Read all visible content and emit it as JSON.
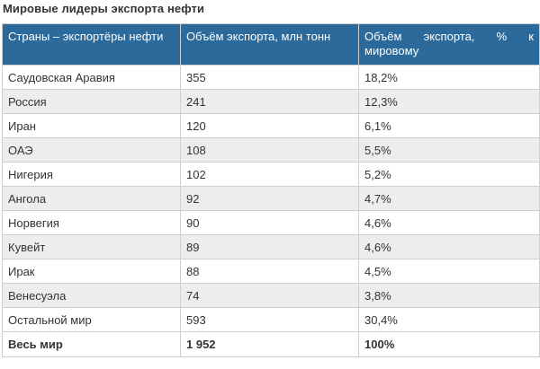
{
  "page": {
    "title": "Мировые лидеры экспорта нефти"
  },
  "table": {
    "headers": [
      "Страны – экспортёры нефти",
      "Объём экспорта, млн тонн",
      "Объём экспорта, % к мировому"
    ],
    "rows": [
      [
        "Саудовская Аравия",
        "355",
        "18,2%"
      ],
      [
        "Россия",
        "241",
        "12,3%"
      ],
      [
        "Иран",
        "120",
        "6,1%"
      ],
      [
        "ОАЭ",
        "108",
        "5,5%"
      ],
      [
        "Нигерия",
        "102",
        "5,2%"
      ],
      [
        "Ангола",
        "92",
        "4,7%"
      ],
      [
        "Норвегия",
        "90",
        "4,6%"
      ],
      [
        "Кувейт",
        "89",
        "4,6%"
      ],
      [
        "Ирак",
        "88",
        "4,5%"
      ],
      [
        "Венесуэла",
        "74",
        "3,8%"
      ],
      [
        "Остальной мир",
        "593",
        "30,4%"
      ]
    ],
    "total": [
      "Весь мир",
      "1 952",
      "100%"
    ]
  },
  "colors": {
    "header_background": "#2b6a9a",
    "header_text": "#ffffff",
    "stripe": "#ededed",
    "text": "#333333"
  }
}
